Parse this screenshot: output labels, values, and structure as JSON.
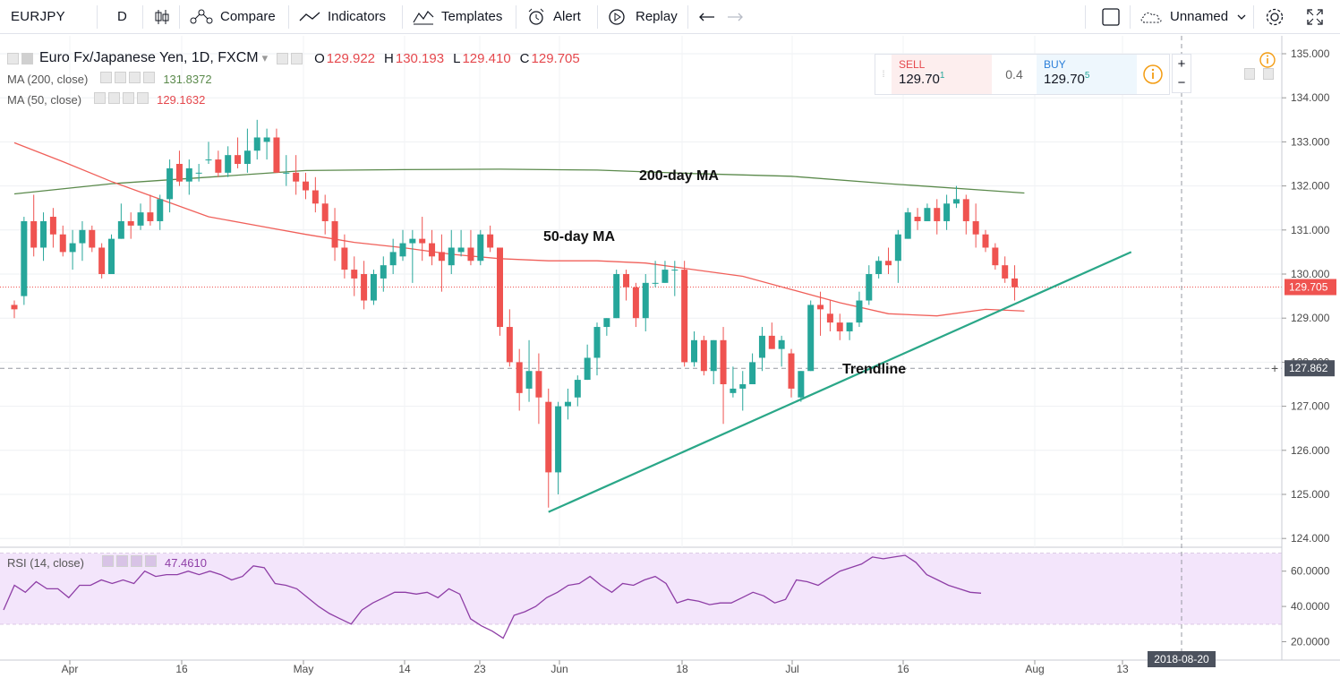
{
  "toolbar": {
    "symbol": "EURJPY",
    "interval": "D",
    "compare_label": "Compare",
    "indicators_label": "Indicators",
    "templates_label": "Templates",
    "alert_label": "Alert",
    "replay_label": "Replay",
    "layout_name": "Unnamed"
  },
  "legend": {
    "title": "Euro Fx/Japanese Yen, 1D, FXCM",
    "open_label": "O",
    "open": "129.922",
    "high_label": "H",
    "high": "130.193",
    "low_label": "L",
    "low": "129.410",
    "close_label": "C",
    "close": "129.705",
    "ma200_label": "MA (200, close)",
    "ma200_value": "131.8372",
    "ma50_label": "MA (50, close)",
    "ma50_value": "129.1632"
  },
  "rsi_legend": {
    "label": "RSI (14, close)",
    "value": "47.4610"
  },
  "trade": {
    "sell_label": "SELL",
    "sell_price": "129.70",
    "sell_sup": "1",
    "spread": "0.4",
    "buy_label": "BUY",
    "buy_price": "129.70",
    "buy_sup": "5"
  },
  "colors": {
    "up": "#26a69a",
    "down": "#ef5350",
    "ma200": "#5b8a4c",
    "ma50": "#f0605a",
    "trendline": "#2aa788",
    "rsi": "#8e3ea6",
    "rsi_band": "#f3e5fb"
  },
  "chart_data": {
    "type": "candlestick",
    "title": "Euro Fx/Japanese Yen, 1D, FXCM",
    "price_axis": {
      "ticks": [
        "135.000",
        "134.000",
        "133.000",
        "132.000",
        "131.000",
        "130.000",
        "129.000",
        "128.000",
        "127.000",
        "126.000",
        "125.000",
        "124.000"
      ],
      "range": [
        124,
        135
      ]
    },
    "x_axis_labels": [
      "Apr",
      "16",
      "May",
      "14",
      "23",
      "Jun",
      "18",
      "Jul",
      "16",
      "Aug",
      "13"
    ],
    "crosshair_date_label": "2018-08-20",
    "last_price_label": "129.705",
    "crosshair_price_label": "127.862",
    "annotations": [
      "200-day MA",
      "50-day MA",
      "Trendline"
    ],
    "candles": [
      [
        129.3,
        129.4,
        129.0,
        129.2
      ],
      [
        129.5,
        131.3,
        129.3,
        131.2
      ],
      [
        131.2,
        131.8,
        130.4,
        130.6
      ],
      [
        130.6,
        131.4,
        130.3,
        131.2
      ],
      [
        131.3,
        131.5,
        130.6,
        130.9
      ],
      [
        130.9,
        131.1,
        130.4,
        130.5
      ],
      [
        130.5,
        131.0,
        130.1,
        130.7
      ],
      [
        130.7,
        131.2,
        130.3,
        131.0
      ],
      [
        131.0,
        131.1,
        130.5,
        130.6
      ],
      [
        130.6,
        130.7,
        129.9,
        130.0
      ],
      [
        130.0,
        130.9,
        130.0,
        130.8
      ],
      [
        130.8,
        131.6,
        130.8,
        131.2
      ],
      [
        131.2,
        131.4,
        130.8,
        131.1
      ],
      [
        131.1,
        131.6,
        131.0,
        131.4
      ],
      [
        131.4,
        131.8,
        131.1,
        131.2
      ],
      [
        131.2,
        131.8,
        131.0,
        131.7
      ],
      [
        131.7,
        132.6,
        131.4,
        132.4
      ],
      [
        132.5,
        132.8,
        132.0,
        132.1
      ],
      [
        132.1,
        132.6,
        131.8,
        132.4
      ],
      [
        132.3,
        132.5,
        132.1,
        132.3
      ],
      [
        132.6,
        133.0,
        132.5,
        132.6
      ],
      [
        132.6,
        132.8,
        132.2,
        132.3
      ],
      [
        132.3,
        132.9,
        132.2,
        132.7
      ],
      [
        132.7,
        133.1,
        132.4,
        132.5
      ],
      [
        132.5,
        133.3,
        132.3,
        132.8
      ],
      [
        132.8,
        133.5,
        132.6,
        133.1
      ],
      [
        133.0,
        133.3,
        132.6,
        133.1
      ],
      [
        133.1,
        133.3,
        132.3,
        132.3
      ],
      [
        132.3,
        132.7,
        132.0,
        132.3
      ],
      [
        132.3,
        132.7,
        131.8,
        132.1
      ],
      [
        132.1,
        132.3,
        131.7,
        131.9
      ],
      [
        131.9,
        132.2,
        131.4,
        131.6
      ],
      [
        131.6,
        131.8,
        130.9,
        131.2
      ],
      [
        131.2,
        131.5,
        130.3,
        130.6
      ],
      [
        130.6,
        130.9,
        129.9,
        130.1
      ],
      [
        130.1,
        130.4,
        129.5,
        129.9
      ],
      [
        130.0,
        130.3,
        129.2,
        129.4
      ],
      [
        129.4,
        130.1,
        129.3,
        130.0
      ],
      [
        129.9,
        130.4,
        129.6,
        130.2
      ],
      [
        130.2,
        130.8,
        130.0,
        130.5
      ],
      [
        130.4,
        131.0,
        130.3,
        130.7
      ],
      [
        130.7,
        131.0,
        129.8,
        130.8
      ],
      [
        130.8,
        131.3,
        130.3,
        130.7
      ],
      [
        130.7,
        131.0,
        130.2,
        130.4
      ],
      [
        130.5,
        130.9,
        129.6,
        130.3
      ],
      [
        130.2,
        131.0,
        130.0,
        130.6
      ],
      [
        130.5,
        131.0,
        130.4,
        130.6
      ],
      [
        130.6,
        131.0,
        130.2,
        130.3
      ],
      [
        130.3,
        131.0,
        130.2,
        130.9
      ],
      [
        130.9,
        131.1,
        130.5,
        130.6
      ],
      [
        130.6,
        130.6,
        128.6,
        128.8
      ],
      [
        128.8,
        129.2,
        127.9,
        128.0
      ],
      [
        128.0,
        128.3,
        126.9,
        127.3
      ],
      [
        127.4,
        128.5,
        127.1,
        127.8
      ],
      [
        127.8,
        128.2,
        126.6,
        127.2
      ],
      [
        127.1,
        127.4,
        124.7,
        125.5
      ],
      [
        125.5,
        127.1,
        125.0,
        127.0
      ],
      [
        127.0,
        127.4,
        126.7,
        127.1
      ],
      [
        127.2,
        127.7,
        127.0,
        127.6
      ],
      [
        127.6,
        128.4,
        127.6,
        128.1
      ],
      [
        128.1,
        128.9,
        127.7,
        128.8
      ],
      [
        128.8,
        129.0,
        128.6,
        129.0
      ],
      [
        129.0,
        130.1,
        129.0,
        130.0
      ],
      [
        130.0,
        130.1,
        129.4,
        129.7
      ],
      [
        129.7,
        129.8,
        128.8,
        129.0
      ],
      [
        129.0,
        130.0,
        128.7,
        129.8
      ],
      [
        129.8,
        130.3,
        129.7,
        129.8
      ],
      [
        129.8,
        130.3,
        129.8,
        130.1
      ],
      [
        130.1,
        130.3,
        129.5,
        130.1
      ],
      [
        130.1,
        130.3,
        127.9,
        128.0
      ],
      [
        128.0,
        128.7,
        127.9,
        128.5
      ],
      [
        128.5,
        128.6,
        127.7,
        127.8
      ],
      [
        127.8,
        128.5,
        127.5,
        128.5
      ],
      [
        128.5,
        128.8,
        126.6,
        127.5
      ],
      [
        127.3,
        127.9,
        127.2,
        127.4
      ],
      [
        127.4,
        127.8,
        126.9,
        127.5
      ],
      [
        127.5,
        128.2,
        127.5,
        128.0
      ],
      [
        128.1,
        128.8,
        127.8,
        128.6
      ],
      [
        128.6,
        128.9,
        128.3,
        128.3
      ],
      [
        128.3,
        128.6,
        127.9,
        128.5
      ],
      [
        128.2,
        128.3,
        127.2,
        127.4
      ],
      [
        127.2,
        127.8,
        127.1,
        127.8
      ],
      [
        127.8,
        129.4,
        127.8,
        129.3
      ],
      [
        129.3,
        129.6,
        128.6,
        129.2
      ],
      [
        129.1,
        129.4,
        128.7,
        128.9
      ],
      [
        128.9,
        129.1,
        128.5,
        128.7
      ],
      [
        128.7,
        128.9,
        128.5,
        128.9
      ],
      [
        128.9,
        129.6,
        128.8,
        129.4
      ],
      [
        129.4,
        130.2,
        129.3,
        130.0
      ],
      [
        130.0,
        130.4,
        129.9,
        130.3
      ],
      [
        130.3,
        130.6,
        130.0,
        130.2
      ],
      [
        130.3,
        131.0,
        129.8,
        130.9
      ],
      [
        130.8,
        131.5,
        130.8,
        131.4
      ],
      [
        131.3,
        131.5,
        131.0,
        131.2
      ],
      [
        131.2,
        131.6,
        131.2,
        131.5
      ],
      [
        131.5,
        131.7,
        130.9,
        131.2
      ],
      [
        131.2,
        131.8,
        131.0,
        131.6
      ],
      [
        131.6,
        132.0,
        131.5,
        131.7
      ],
      [
        131.7,
        131.8,
        130.9,
        131.2
      ],
      [
        131.2,
        131.6,
        130.6,
        130.9
      ],
      [
        130.9,
        131.0,
        130.5,
        130.6
      ],
      [
        130.6,
        130.7,
        130.1,
        130.2
      ],
      [
        130.2,
        130.4,
        129.8,
        129.9
      ],
      [
        129.9,
        130.2,
        129.4,
        129.7
      ]
    ],
    "ma200": [
      [
        0,
        131.82
      ],
      [
        10,
        132.05
      ],
      [
        20,
        132.2
      ],
      [
        30,
        132.35
      ],
      [
        40,
        132.37
      ],
      [
        50,
        132.38
      ],
      [
        60,
        132.36
      ],
      [
        70,
        132.28
      ],
      [
        80,
        132.22
      ],
      [
        90,
        132.05
      ],
      [
        100,
        131.9
      ],
      [
        104,
        131.84
      ]
    ],
    "ma50": [
      [
        0,
        132.98
      ],
      [
        5,
        132.55
      ],
      [
        10,
        132.1
      ],
      [
        15,
        131.7
      ],
      [
        20,
        131.3
      ],
      [
        25,
        131.1
      ],
      [
        30,
        130.9
      ],
      [
        35,
        130.72
      ],
      [
        40,
        130.6
      ],
      [
        45,
        130.45
      ],
      [
        50,
        130.35
      ],
      [
        55,
        130.3
      ],
      [
        60,
        130.3
      ],
      [
        65,
        130.25
      ],
      [
        70,
        130.1
      ],
      [
        75,
        129.95
      ],
      [
        80,
        129.65
      ],
      [
        85,
        129.35
      ],
      [
        90,
        129.1
      ],
      [
        95,
        129.05
      ],
      [
        100,
        129.2
      ],
      [
        104,
        129.16
      ]
    ],
    "trendline": [
      [
        55,
        124.6
      ],
      [
        115,
        130.5
      ]
    ],
    "rsi": {
      "ticks": [
        "60.0000",
        "40.0000",
        "20.0000"
      ],
      "band": [
        30,
        70
      ],
      "values": [
        38,
        52,
        48,
        54,
        50,
        50,
        45,
        52,
        52,
        55,
        53,
        55,
        53,
        60,
        57,
        58,
        58,
        60,
        58,
        60,
        58,
        55,
        57,
        63,
        62,
        53,
        52,
        50,
        45,
        40,
        36,
        33,
        30,
        38,
        42,
        45,
        48,
        48,
        47,
        48,
        45,
        50,
        47,
        33,
        29,
        26,
        22,
        35,
        37,
        40,
        45,
        48,
        52,
        53,
        57,
        52,
        48,
        53,
        52,
        55,
        57,
        53,
        42,
        44,
        43,
        41,
        42,
        42,
        45,
        48,
        46,
        42,
        44,
        55,
        54,
        52,
        56,
        60,
        62,
        64,
        68,
        67,
        68,
        69,
        65,
        58,
        55,
        52,
        50,
        48,
        47.5
      ]
    }
  }
}
